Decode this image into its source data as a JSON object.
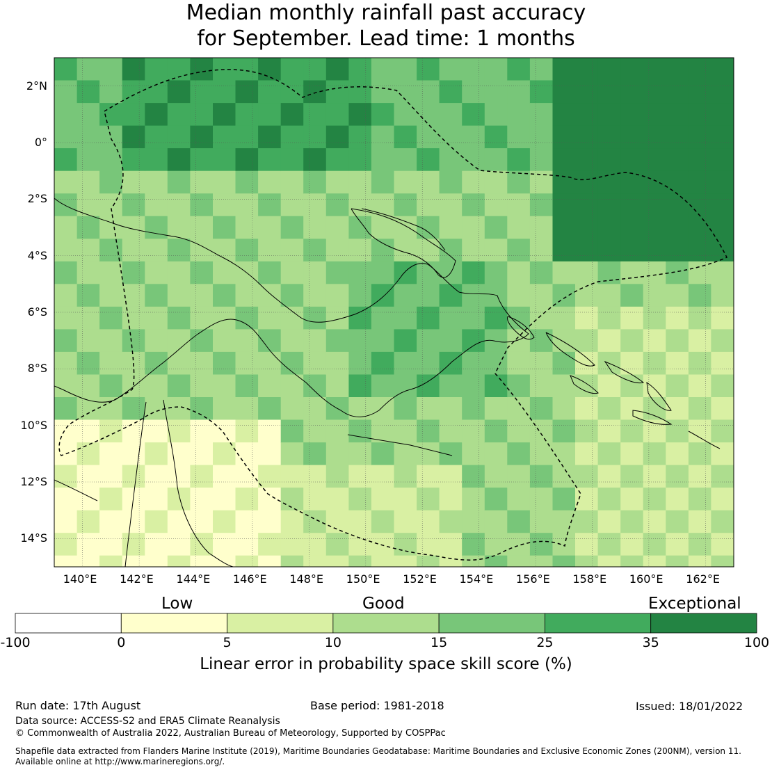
{
  "title": {
    "line1": "Median monthly rainfall past accuracy",
    "line2": "for September. Lead time: 1 months"
  },
  "map": {
    "lat_labels": [
      "2°N",
      "0°",
      "2°S",
      "4°S",
      "6°S",
      "8°S",
      "10°S",
      "12°S",
      "14°S"
    ],
    "lon_labels": [
      "140°E",
      "142°E",
      "144°E",
      "146°E",
      "148°E",
      "150°E",
      "152°E",
      "154°E",
      "156°E",
      "158°E",
      "160°E",
      "162°E"
    ],
    "lat_range": [
      -15,
      3
    ],
    "lon_range": [
      139,
      163
    ],
    "grid": "on"
  },
  "colorbar": {
    "categories": [
      "Low",
      "Good",
      "Exceptional"
    ],
    "ticks": [
      "-100",
      "0",
      "5",
      "10",
      "15",
      "25",
      "35",
      "100"
    ],
    "colors": [
      "#ffffff",
      "#ffffcc",
      "#d9f0a3",
      "#addd8e",
      "#78c679",
      "#41ab5d",
      "#238443"
    ],
    "label": "Linear error in probability space skill score (%)"
  },
  "footer": {
    "run_date": "Run date: 17th August",
    "base_period": "Base period: 1981-2018",
    "issued": "Issued: 18/01/2022",
    "data_source": "Data source: ACCESS-S2 and ERA5 Climate Reanalysis",
    "copyright": "© Commonwealth of Australia 2022, Australian Bureau of Meteorology, Supported by COSPPac",
    "shapefile_line1": "Shapefile data extracted from Flanders Marine Institute (2019), Maritime Boundaries Geodatabase: Maritime Boundaries and Exclusive Economic Zones (200NM), version 11.",
    "shapefile_line2": "Available online at http://www.marineregions.org/."
  }
}
